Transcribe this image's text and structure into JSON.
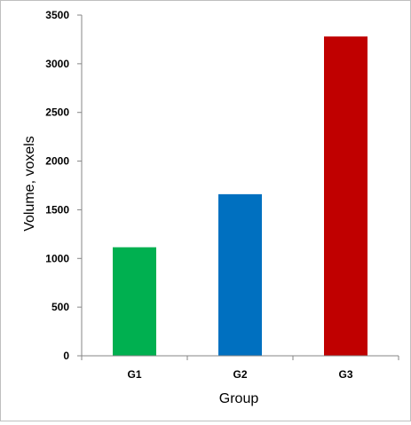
{
  "chart_data": {
    "type": "bar",
    "title": "",
    "xlabel": "Group",
    "ylabel": "Volume, voxels",
    "categories": [
      "G1",
      "G2",
      "G3"
    ],
    "values": [
      1115,
      1660,
      3280
    ],
    "colors": [
      "#00b050",
      "#0070c0",
      "#c00000"
    ],
    "ylim": [
      0,
      3500
    ],
    "yticks": [
      0,
      500,
      1000,
      1500,
      2000,
      2500,
      3000,
      3500
    ],
    "grid": false,
    "legend": "none"
  }
}
